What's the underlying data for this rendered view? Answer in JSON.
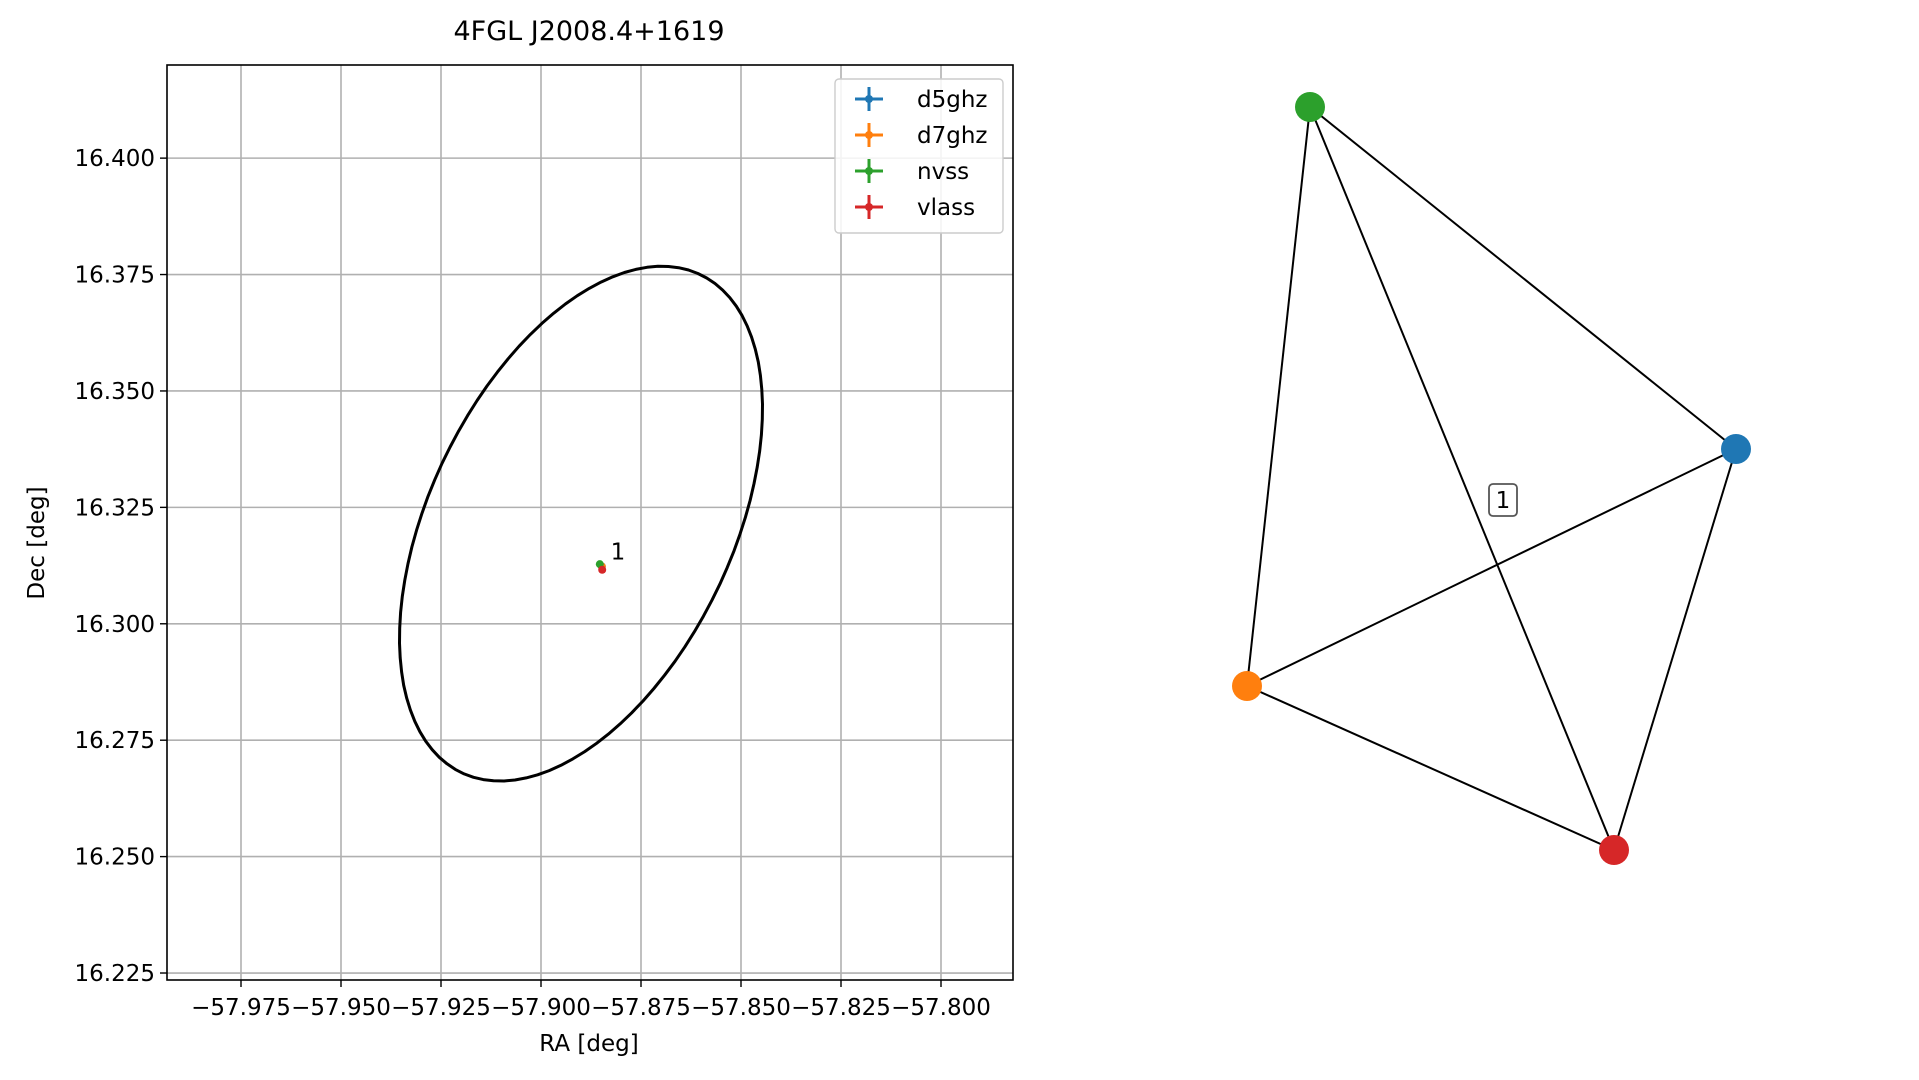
{
  "chart_data": [
    {
      "type": "scatter",
      "title": "4FGL J2008.4+1619",
      "xlabel": "RA [deg]",
      "ylabel": "Dec [deg]",
      "xlim": [
        -57.9935,
        -57.782
      ],
      "ylim": [
        16.2235,
        16.42
      ],
      "xticks": [
        -57.975,
        -57.95,
        -57.925,
        -57.9,
        -57.875,
        -57.85,
        -57.825,
        -57.8
      ],
      "xtick_labels": [
        "−57.975",
        "−57.950",
        "−57.925",
        "−57.900",
        "−57.875",
        "−57.850",
        "−57.825",
        "−57.800"
      ],
      "yticks": [
        16.225,
        16.25,
        16.275,
        16.3,
        16.325,
        16.35,
        16.375,
        16.4
      ],
      "ytick_labels": [
        "16.225",
        "16.250",
        "16.275",
        "16.300",
        "16.325",
        "16.350",
        "16.375",
        "16.400"
      ],
      "grid": true,
      "legend_position": "top-right",
      "series": [
        {
          "name": "d5ghz",
          "color": "#1f77b4",
          "points": [
            {
              "x": -57.8848,
              "y": 16.3123
            }
          ]
        },
        {
          "name": "d7ghz",
          "color": "#ff7f0e",
          "points": [
            {
              "x": -57.8848,
              "y": 16.3123
            }
          ]
        },
        {
          "name": "nvss",
          "color": "#2ca02c",
          "points": [
            {
              "x": -57.8853,
              "y": 16.3128
            }
          ]
        },
        {
          "name": "vlass",
          "color": "#d62728",
          "points": [
            {
              "x": -57.8847,
              "y": 16.3116
            }
          ]
        }
      ],
      "ellipse": {
        "center": [
          -57.89,
          16.3215
        ],
        "semi_major": 0.0615,
        "semi_minor": 0.0365,
        "angle_deg": 57,
        "color": "#000000"
      },
      "annotations": [
        {
          "text": "1",
          "x": -57.8826,
          "y": 16.3138
        }
      ]
    },
    {
      "type": "graph",
      "nodes": [
        {
          "id": "d5ghz",
          "color": "#1f77b4"
        },
        {
          "id": "d7ghz",
          "color": "#ff7f0e"
        },
        {
          "id": "nvss",
          "color": "#2ca02c"
        },
        {
          "id": "vlass",
          "color": "#d62728"
        }
      ],
      "edges": [
        [
          "nvss",
          "d5ghz"
        ],
        [
          "nvss",
          "d7ghz"
        ],
        [
          "nvss",
          "vlass"
        ],
        [
          "d7ghz",
          "d5ghz"
        ],
        [
          "d7ghz",
          "vlass"
        ],
        [
          "d5ghz",
          "vlass"
        ]
      ],
      "label": "1"
    }
  ]
}
